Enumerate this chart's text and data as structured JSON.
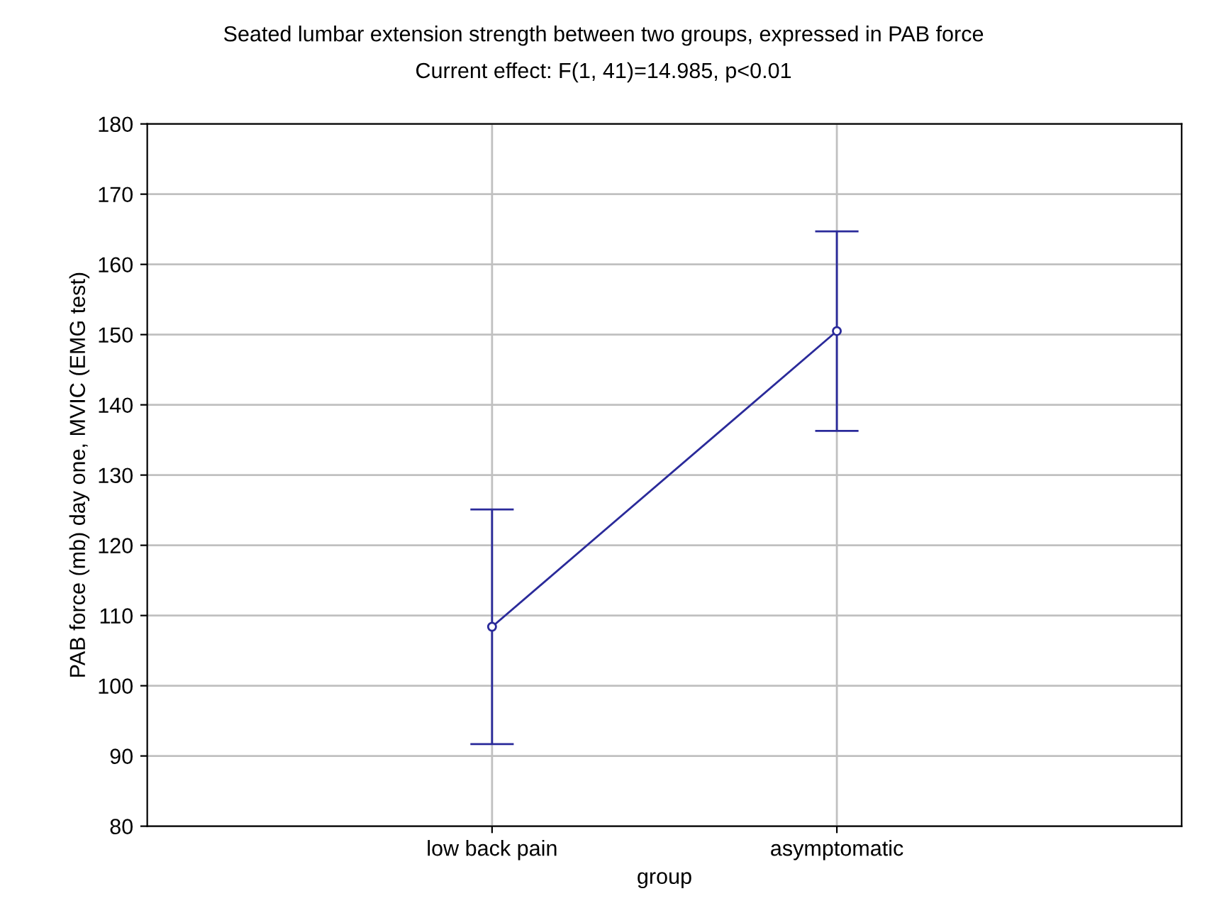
{
  "chart_data": {
    "type": "line",
    "title": "Seated lumbar extension strength between two groups, expressed in PAB force",
    "subtitle": "Current effect: F(1, 41)=14.985, p<0.01",
    "xlabel": "group",
    "ylabel": "PAB force (mb) day one, MVIC (EMG test)",
    "categories": [
      "low back pain",
      "asymptomatic"
    ],
    "series": [
      {
        "color": "#2a2a9a",
        "values": [
          108.4,
          150.5
        ],
        "errors": [
          16.7,
          14.2
        ]
      }
    ],
    "ylim": [
      80,
      180
    ],
    "yticks": [
      80,
      90,
      100,
      110,
      120,
      130,
      140,
      150,
      160,
      170,
      180
    ],
    "grid": true,
    "marker": "circle",
    "line_style": "solid",
    "legend": false
  }
}
